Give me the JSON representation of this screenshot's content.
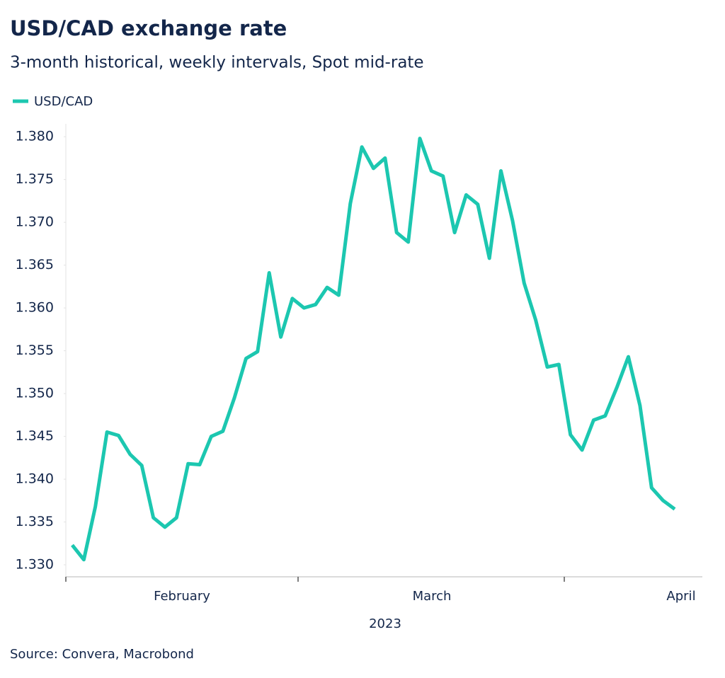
{
  "chart_data": {
    "type": "line",
    "title": "USD/CAD exchange rate",
    "subtitle": "3-month historical, weekly intervals, Spot mid-rate",
    "source": "Source: Convera, Macrobond",
    "x_label": "2023",
    "month_labels": [
      "February",
      "March",
      "April"
    ],
    "categories": [
      null,
      null,
      null,
      null,
      null,
      null,
      null,
      null,
      null,
      null,
      null,
      null,
      null,
      null,
      null,
      null,
      null,
      null,
      null,
      null,
      null,
      null,
      null,
      null,
      null,
      null,
      null,
      null,
      null,
      null,
      null,
      null,
      null,
      null,
      null,
      null,
      null,
      null,
      null,
      null,
      null,
      null,
      null,
      null,
      null,
      null,
      null,
      null,
      null,
      null,
      null,
      null,
      null
    ],
    "series": [
      {
        "name": "USD/CAD",
        "color": "#1cc7b0",
        "values": [
          1.3323,
          1.3306,
          1.3368,
          1.3455,
          1.3451,
          1.3429,
          1.3416,
          1.3355,
          1.3344,
          1.3355,
          1.3418,
          1.3417,
          1.345,
          1.3456,
          1.3495,
          1.3541,
          1.3549,
          1.3641,
          1.3566,
          1.3611,
          1.36,
          1.3604,
          1.3624,
          1.3615,
          1.3722,
          1.3788,
          1.3763,
          1.3775,
          1.3688,
          1.3677,
          1.3798,
          1.376,
          1.3754,
          1.3688,
          1.3732,
          1.3721,
          1.3658,
          1.376,
          1.3702,
          1.3629,
          1.3586,
          1.3531,
          1.3534,
          1.3452,
          1.3434,
          1.3469,
          1.3474,
          1.3507,
          1.3543,
          1.3486,
          1.339,
          1.3375,
          1.3365
        ]
      }
    ],
    "ylim": [
      1.3286,
      1.3815
    ],
    "yticks": [
      {
        "value": 1.33,
        "label": "1.330"
      },
      {
        "value": 1.335,
        "label": "1.335"
      },
      {
        "value": 1.34,
        "label": "1.340"
      },
      {
        "value": 1.345,
        "label": "1.345"
      },
      {
        "value": 1.35,
        "label": "1.350"
      },
      {
        "value": 1.355,
        "label": "1.355"
      },
      {
        "value": 1.36,
        "label": "1.360"
      },
      {
        "value": 1.365,
        "label": "1.365"
      },
      {
        "value": 1.37,
        "label": "1.370"
      },
      {
        "value": 1.375,
        "label": "1.375"
      },
      {
        "value": 1.38,
        "label": "1.380"
      }
    ],
    "grid": false
  }
}
